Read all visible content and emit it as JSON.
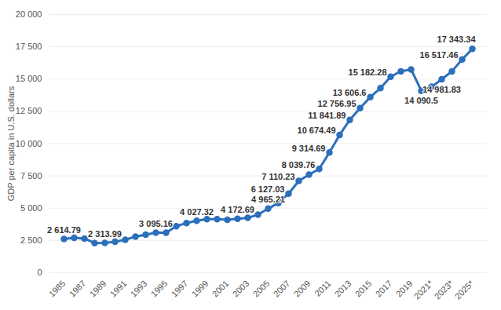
{
  "chart_data": {
    "type": "line",
    "y_label": "GDP per capita in U.S. dollars",
    "categories": [
      "1985",
      null,
      "1987",
      null,
      "1989",
      null,
      "1991",
      null,
      "1993",
      null,
      "1995",
      null,
      "1997",
      null,
      "1999",
      null,
      "2001",
      null,
      "2003",
      null,
      "2005",
      null,
      "2007",
      null,
      "2009",
      null,
      "2011",
      null,
      "2013",
      null,
      "2015",
      null,
      "2017",
      null,
      "2019",
      null,
      "2021*",
      null,
      "2023*",
      null,
      "2025*"
    ],
    "values": [
      2614.79,
      2700,
      2650,
      2300,
      2313.99,
      2400,
      2550,
      2800,
      2950,
      3095.16,
      3100,
      3600,
      3850,
      4027.32,
      4150,
      4150,
      4100,
      4172.69,
      4250,
      4500,
      4965.21,
      5400,
      6127.03,
      7110.23,
      7600,
      8039.76,
      9314.69,
      10674.49,
      11841.89,
      12756.95,
      13606.6,
      14300,
      15182.28,
      15600,
      15750,
      14090.5,
      14400,
      14981.83,
      15600,
      16517.46,
      17343.34
    ],
    "value_labels": [
      "2 614.79",
      null,
      null,
      null,
      "2 313.99",
      null,
      null,
      null,
      null,
      "3 095.16",
      null,
      null,
      null,
      "4 027.32",
      null,
      null,
      null,
      "4 172.69",
      null,
      null,
      "4 965.21",
      null,
      "6 127.03",
      "7 110.23",
      null,
      "8 039.76",
      "9 314.69",
      "10 674.49",
      "11 841.89",
      "12 756.95",
      "13 606.6",
      null,
      "15 182.28",
      null,
      null,
      "14 090.5",
      null,
      "14 981.83",
      null,
      "16 517.46",
      "17 343.34"
    ],
    "data_labels": true,
    "color": "#2c6fbb",
    "marker": "circle",
    "ylim": [
      0,
      20000
    ],
    "yticks": [
      0,
      {
        "value": 2500,
        "label": "2 500"
      },
      {
        "value": 5000,
        "label": "5 000"
      },
      {
        "value": 7500,
        "label": "7 500"
      },
      {
        "value": 10000,
        "label": "10 000"
      },
      {
        "value": 12500,
        "label": "12 500"
      },
      {
        "value": 15000,
        "label": "15 000"
      },
      {
        "value": 17500,
        "label": "17 500"
      },
      {
        "value": 20000,
        "label": "20 000"
      }
    ],
    "grid": true
  }
}
